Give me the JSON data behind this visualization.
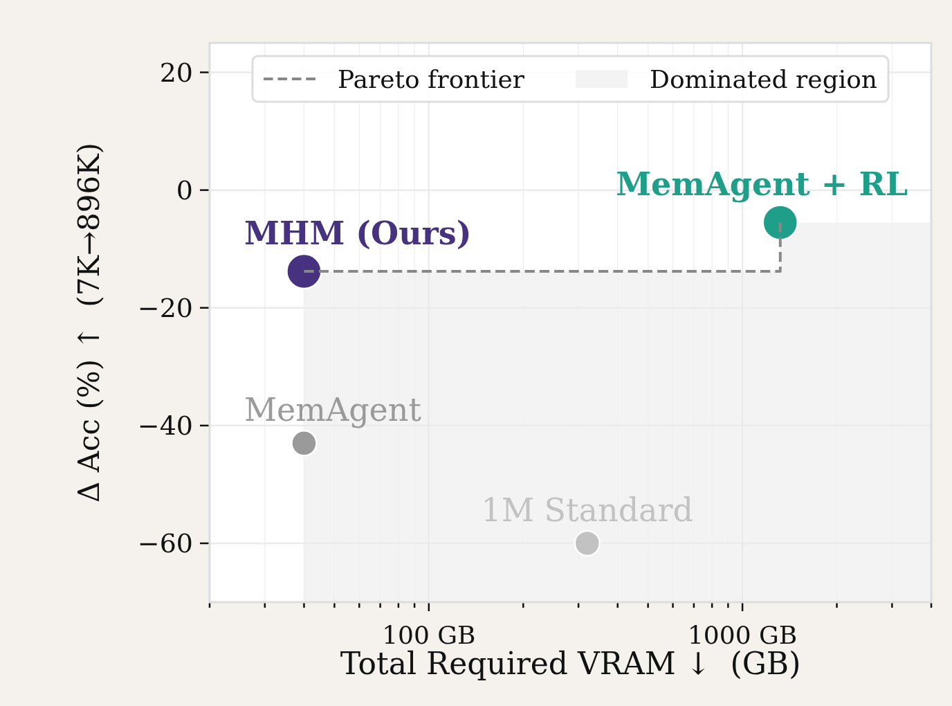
{
  "chart_data": {
    "type": "scatter",
    "xlabel": "Total Required VRAM ↓  (GB)",
    "ylabel": "Δ Acc (%) ↑  (7K→896K)",
    "log": "x",
    "xlim": [
      20,
      4000
    ],
    "ylim": [
      -70,
      25
    ],
    "xticks": [
      {
        "value": 20,
        "label": null
      },
      {
        "value": 30,
        "label": null
      },
      {
        "value": 40,
        "label": null
      },
      {
        "value": 50,
        "label": null
      },
      {
        "value": 60,
        "label": null
      },
      {
        "value": 70,
        "label": null
      },
      {
        "value": 80,
        "label": null
      },
      {
        "value": 90,
        "label": null
      },
      {
        "value": 100,
        "label": "100 GB"
      },
      {
        "value": 200,
        "label": null
      },
      {
        "value": 300,
        "label": null
      },
      {
        "value": 400,
        "label": null
      },
      {
        "value": 500,
        "label": null
      },
      {
        "value": 600,
        "label": null
      },
      {
        "value": 700,
        "label": null
      },
      {
        "value": 800,
        "label": null
      },
      {
        "value": 900,
        "label": null
      },
      {
        "value": 1000,
        "label": "1000 GB"
      },
      {
        "value": 2000,
        "label": null
      },
      {
        "value": 3000,
        "label": null
      },
      {
        "value": 4000,
        "label": null
      }
    ],
    "yticks": [
      {
        "value": -60,
        "label": "−60"
      },
      {
        "value": -40,
        "label": "−40"
      },
      {
        "value": -20,
        "label": "−20"
      },
      0,
      20
    ],
    "grid": true,
    "legend": "top",
    "marker": "circle",
    "series": [
      {
        "name": "MHM (Ours)",
        "color": "#46327e",
        "x": [
          40
        ],
        "values": [
          -13.8
        ]
      },
      {
        "name": "MemAgent + RL",
        "color": "#1f9e89",
        "x": [
          1320
        ],
        "values": [
          -5.5
        ]
      },
      {
        "name": "MemAgent",
        "color": "#9a9a9a",
        "x": [
          40
        ],
        "values": [
          -43
        ]
      },
      {
        "name": "1M Standard",
        "color": "#c2c2c2",
        "x": [
          320
        ],
        "values": [
          -60
        ]
      },
      {
        "name": "Pareto frontier",
        "type": "step",
        "color": "#888888",
        "line_style": "dashed",
        "marker": "none",
        "x": [
          40,
          1320
        ],
        "values": [
          -13.8,
          -5.5
        ]
      },
      {
        "name": "Dominated region",
        "type": "area",
        "color": "#f3f3f3"
      }
    ]
  }
}
